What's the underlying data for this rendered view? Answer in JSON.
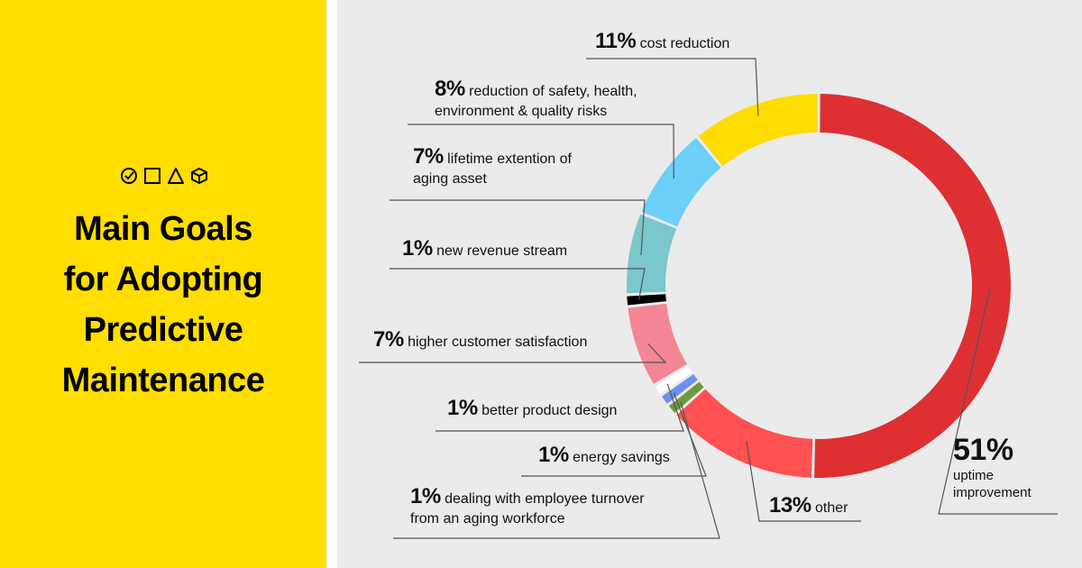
{
  "title_lines": [
    "Main Goals",
    "for Adopting",
    "Predictive",
    "Maintenance"
  ],
  "icons": [
    "check-circle-icon",
    "square-icon",
    "triangle-icon",
    "cube-icon"
  ],
  "chart_data": {
    "type": "pie",
    "donut": true,
    "title": "Main Goals for Adopting Predictive Maintenance",
    "slices": [
      {
        "pct": "51%",
        "value": 51,
        "label_lines": [
          "uptime",
          "improvement"
        ],
        "color": "#de3032"
      },
      {
        "pct": "13%",
        "value": 13,
        "label_lines": [
          "other"
        ],
        "color": "#ff5151"
      },
      {
        "pct": "1%",
        "value": 1,
        "label_lines": [
          "dealing with employee turnover",
          "from an aging workforce"
        ],
        "color": "#6e9a3c"
      },
      {
        "pct": "1%",
        "value": 1,
        "label_lines": [
          "energy savings"
        ],
        "color": "#6f8ff2"
      },
      {
        "pct": "1%",
        "value": 1,
        "label_lines": [
          "better product design"
        ],
        "color": "#ffffff"
      },
      {
        "pct": "7%",
        "value": 7,
        "label_lines": [
          "higher customer satisfaction"
        ],
        "color": "#f48595"
      },
      {
        "pct": "1%",
        "value": 1,
        "label_lines": [
          "new revenue stream"
        ],
        "color": "#000000"
      },
      {
        "pct": "7%",
        "value": 7,
        "label_lines": [
          "lifetime extention of",
          "aging asset"
        ],
        "color": "#7ac7cc"
      },
      {
        "pct": "8%",
        "value": 8,
        "label_lines": [
          "reduction of safety, health,",
          "environment & quality risks"
        ],
        "color": "#6dd0f8"
      },
      {
        "pct": "11%",
        "value": 11,
        "label_lines": [
          "cost reduction"
        ],
        "color": "#ffdd00"
      }
    ]
  },
  "colors": {
    "left_panel": "#ffde00",
    "right_panel": "#ebebeb",
    "leader_line": "#555555"
  }
}
